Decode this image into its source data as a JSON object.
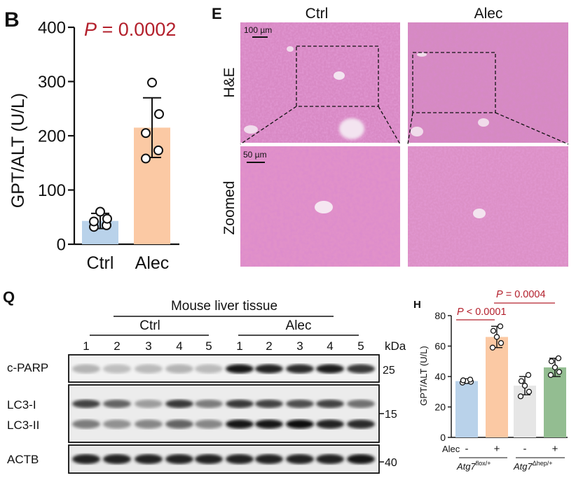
{
  "panels": {
    "B": {
      "letter": "B",
      "pvalue": "P = 0.0002",
      "pvalue_p": "P",
      "pvalue_rest": " = 0.0002",
      "colors": {
        "ctrl": "#b9d2ea",
        "alec": "#fbc9a4"
      }
    },
    "E": {
      "letter": "E",
      "columns": [
        "Ctrl",
        "Alec"
      ],
      "rows": [
        "H&E",
        "Zoomed"
      ],
      "scalebars": [
        "100 µm",
        "50 µm"
      ]
    },
    "Q": {
      "letter": "Q",
      "header": "Mouse liver tissue",
      "groups": [
        "Ctrl",
        "Alec"
      ],
      "lanes": [
        "1",
        "2",
        "3",
        "4",
        "5",
        "1",
        "2",
        "3",
        "4",
        "5"
      ],
      "kda_label": "kDa",
      "bands": [
        "c-PARP",
        "LC3-I",
        "LC3-II",
        "ACTB"
      ],
      "markers": [
        "25",
        "15",
        "40"
      ],
      "lane_signal": {
        "c-PARP": [
          0.25,
          0.2,
          0.22,
          0.25,
          0.22,
          0.95,
          0.9,
          0.85,
          0.92,
          0.8
        ],
        "LC3-I": [
          0.75,
          0.6,
          0.35,
          0.8,
          0.5,
          0.8,
          0.75,
          0.7,
          0.75,
          0.55
        ],
        "LC3-II": [
          0.5,
          0.4,
          0.45,
          0.6,
          0.45,
          0.95,
          0.95,
          1.0,
          0.9,
          0.85
        ],
        "ACTB": [
          0.9,
          0.9,
          0.9,
          0.9,
          0.9,
          0.9,
          0.9,
          0.9,
          0.9,
          0.95
        ]
      }
    },
    "H": {
      "letter": "H",
      "pvalue1_p": "P",
      "pvalue1_rest": " < 0.0001",
      "pvalue2_p": "P",
      "pvalue2_rest": " = 0.0004",
      "alec_label": "Alec",
      "alec_signs": [
        "-",
        "+",
        "-",
        "+"
      ],
      "genotype1_base": "Atg7",
      "genotype1_sup": "flox/+",
      "genotype2_base": "Atg7",
      "genotype2_sup": "Δhep/+",
      "colors": [
        "#b9d2ea",
        "#fbc9a4",
        "#e6e6e6",
        "#93bd91"
      ]
    }
  },
  "chart_data": [
    {
      "type": "bar",
      "panel": "B",
      "categories": [
        "Ctrl",
        "Alec"
      ],
      "values": [
        43,
        215
      ],
      "errors": [
        14,
        55
      ],
      "points": [
        [
          32,
          35,
          42,
          47,
          60
        ],
        [
          158,
          173,
          205,
          240,
          298
        ]
      ],
      "ylabel": "GPT/ALT (U/L)",
      "ylim": [
        0,
        400
      ],
      "yticks": [
        0,
        100,
        200,
        300,
        400
      ]
    },
    {
      "type": "bar",
      "panel": "H",
      "categories": [
        "-",
        "+",
        "-",
        "+"
      ],
      "values": [
        37,
        66,
        34,
        46
      ],
      "errors": [
        1.5,
        7,
        6,
        6
      ],
      "points": [
        [
          36,
          36.5,
          37,
          37.5,
          38
        ],
        [
          59,
          62,
          66,
          70,
          73
        ],
        [
          27,
          30,
          34,
          37,
          41
        ],
        [
          41,
          43,
          46,
          50,
          52
        ]
      ],
      "ylabel": "GPT/ALT (U/L)",
      "ylim": [
        0,
        80
      ],
      "yticks": [
        0,
        20,
        40,
        60,
        80
      ]
    }
  ]
}
